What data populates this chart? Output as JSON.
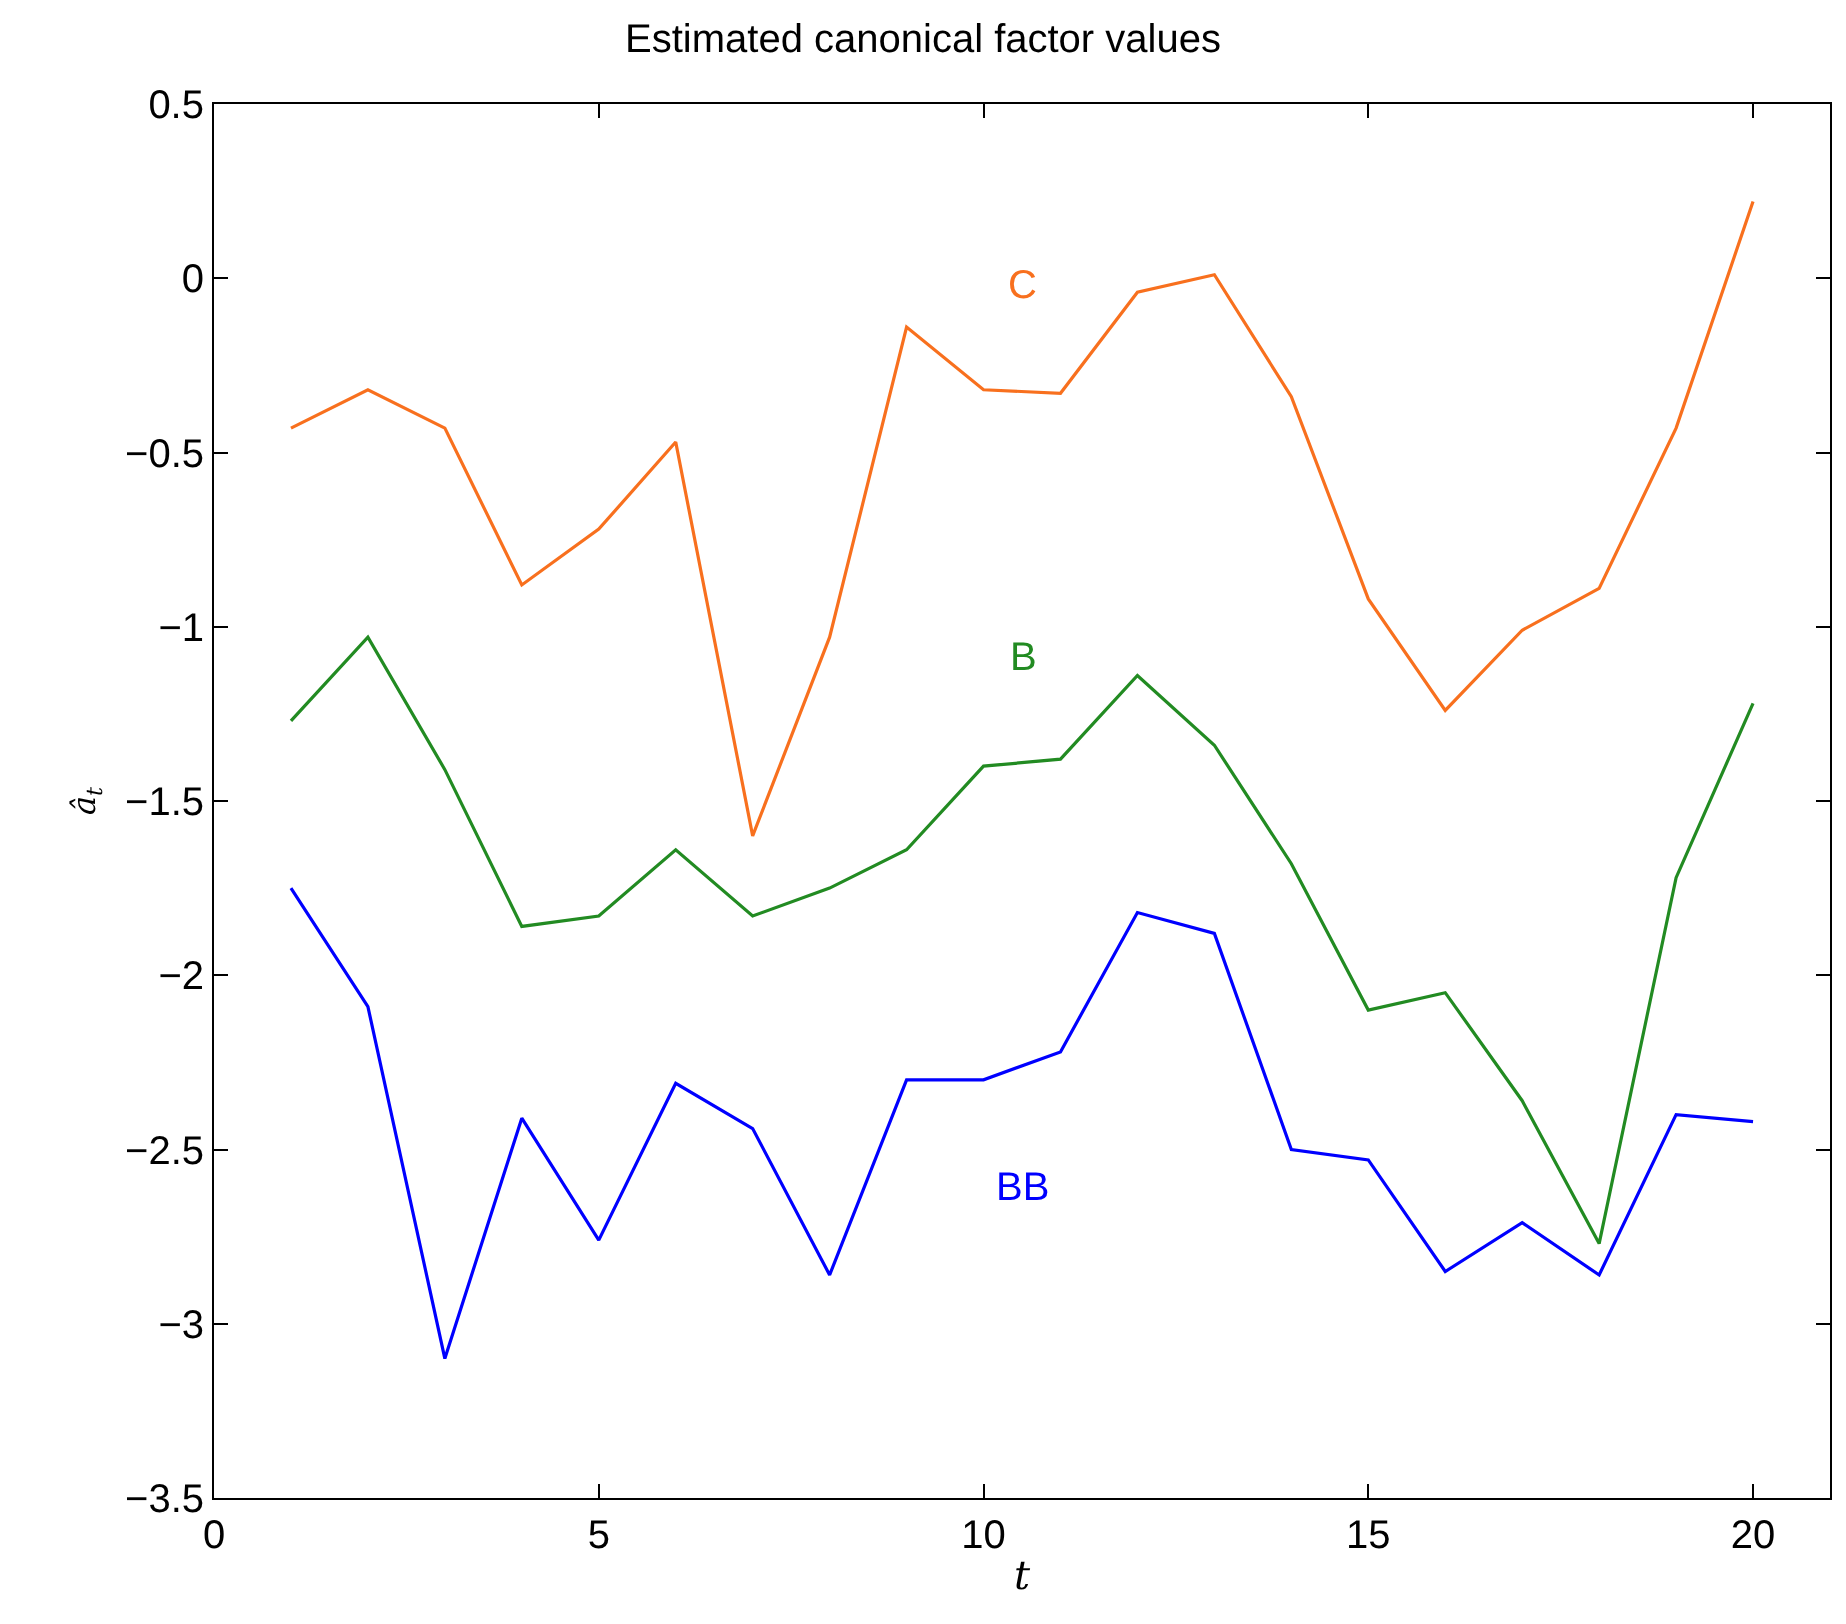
{
  "chart_data": {
    "type": "line",
    "title": "Estimated canonical factor values",
    "xlabel": "t",
    "ylabel": "â$_{t}$",
    "x": [
      1,
      2,
      3,
      4,
      5,
      6,
      7,
      8,
      9,
      10,
      11,
      12,
      13,
      14,
      15,
      16,
      17,
      18,
      19,
      20
    ],
    "series": [
      {
        "name": "C",
        "color": "#f8701e",
        "values": [
          -0.43,
          -0.32,
          -0.43,
          -0.88,
          -0.72,
          -0.47,
          -1.6,
          -1.03,
          -0.14,
          -0.32,
          -0.33,
          -0.04,
          0.01,
          -0.34,
          -0.92,
          -1.24,
          -1.01,
          -0.89,
          -0.43,
          0.22
        ]
      },
      {
        "name": "B",
        "color": "#228b22",
        "values": [
          -1.27,
          -1.03,
          -1.41,
          -1.86,
          -1.83,
          -1.64,
          -1.83,
          -1.75,
          -1.64,
          -1.4,
          -1.38,
          -1.14,
          -1.34,
          -1.68,
          -2.1,
          -2.05,
          -2.36,
          -2.77,
          -1.72,
          -1.22
        ]
      },
      {
        "name": "BB",
        "color": "#0000ff",
        "values": [
          -1.75,
          -2.09,
          -3.1,
          -2.41,
          -2.76,
          -2.31,
          -2.44,
          -2.86,
          -2.3,
          -2.3,
          -2.22,
          -1.82,
          -1.88,
          -2.5,
          -2.53,
          -2.85,
          -2.71,
          -2.86,
          -2.4,
          -2.42
        ]
      }
    ],
    "xlim": [
      0,
      21
    ],
    "xticks": [
      0,
      5,
      10,
      15,
      20
    ],
    "ylim": [
      -3.5,
      0.5
    ],
    "yticks": [
      -3.5,
      -3,
      -2.5,
      -2,
      -1.5,
      -1,
      -0.5,
      0,
      0.5
    ],
    "legend": false,
    "marker": "none",
    "line_style": "solid"
  }
}
